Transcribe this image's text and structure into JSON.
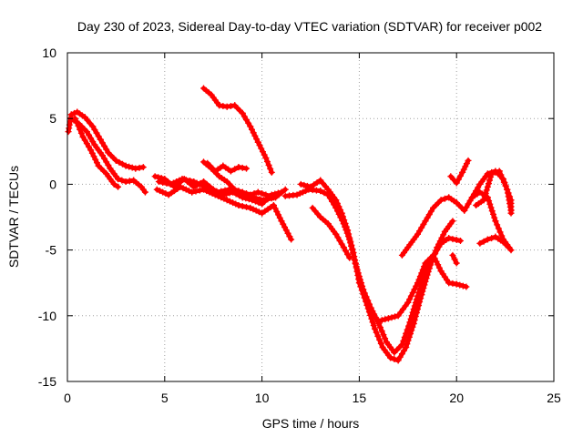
{
  "chart_data": {
    "type": "scatter",
    "title": "Day 230 of 2023, Sidereal Day-to-day VTEC variation (SDTVAR) for receiver p002",
    "xlabel": "GPS time / hours",
    "ylabel": "SDTVAR / TECUs",
    "xlim": [
      0,
      25
    ],
    "ylim": [
      -15,
      10
    ],
    "xticks": [
      0,
      5,
      10,
      15,
      20,
      25
    ],
    "yticks": [
      -15,
      -10,
      -5,
      0,
      5,
      10
    ],
    "grid": true,
    "marker": "+",
    "color": "#ff0000",
    "series": [
      {
        "name": "trace-1",
        "points": [
          [
            0.05,
            4.0
          ],
          [
            0.2,
            5.3
          ],
          [
            0.5,
            5.5
          ],
          [
            0.9,
            5.1
          ],
          [
            1.3,
            4.4
          ],
          [
            1.7,
            3.4
          ],
          [
            2.1,
            2.4
          ],
          [
            2.5,
            1.8
          ],
          [
            3.0,
            1.4
          ],
          [
            3.5,
            1.2
          ],
          [
            3.9,
            1.3
          ]
        ]
      },
      {
        "name": "trace-2",
        "points": [
          [
            0.2,
            5.0
          ],
          [
            0.6,
            4.6
          ],
          [
            1.0,
            4.0
          ],
          [
            1.4,
            3.0
          ],
          [
            1.8,
            2.2
          ],
          [
            2.2,
            1.2
          ],
          [
            2.6,
            0.4
          ],
          [
            3.0,
            0.2
          ],
          [
            3.4,
            0.3
          ],
          [
            3.8,
            -0.2
          ],
          [
            4.0,
            -0.6
          ]
        ]
      },
      {
        "name": "trace-3",
        "points": [
          [
            0.4,
            5.0
          ],
          [
            0.8,
            3.6
          ],
          [
            1.2,
            2.6
          ],
          [
            1.6,
            1.4
          ],
          [
            2.0,
            0.8
          ],
          [
            2.4,
            0.0
          ],
          [
            2.6,
            -0.2
          ]
        ]
      },
      {
        "name": "trace-4",
        "points": [
          [
            4.5,
            0.6
          ],
          [
            5.0,
            0.4
          ],
          [
            5.5,
            -0.2
          ],
          [
            6.0,
            0.4
          ],
          [
            6.5,
            -0.2
          ],
          [
            7.0,
            0.2
          ],
          [
            7.5,
            -0.4
          ],
          [
            8.0,
            -0.8
          ],
          [
            8.5,
            -0.6
          ],
          [
            9.0,
            -1.0
          ],
          [
            9.5,
            -1.2
          ],
          [
            10.0,
            -1.5
          ],
          [
            10.5,
            -0.8
          ],
          [
            11.0,
            -0.6
          ]
        ]
      },
      {
        "name": "trace-5",
        "points": [
          [
            4.6,
            -0.4
          ],
          [
            5.2,
            -0.8
          ],
          [
            5.8,
            -0.2
          ],
          [
            6.4,
            -0.6
          ],
          [
            7.0,
            -0.4
          ],
          [
            7.6,
            -0.8
          ],
          [
            8.2,
            -1.2
          ],
          [
            8.8,
            -1.6
          ],
          [
            9.4,
            -1.8
          ],
          [
            10.0,
            -2.2
          ],
          [
            10.6,
            -1.6
          ],
          [
            11.0,
            -2.8
          ],
          [
            11.5,
            -4.2
          ]
        ]
      },
      {
        "name": "trace-6",
        "points": [
          [
            4.7,
            0.2
          ],
          [
            5.3,
            0.0
          ],
          [
            5.9,
            0.4
          ],
          [
            6.5,
            0.2
          ],
          [
            7.1,
            -0.2
          ],
          [
            7.7,
            -0.6
          ],
          [
            8.3,
            -0.4
          ],
          [
            8.9,
            -0.8
          ],
          [
            9.5,
            -1.0
          ],
          [
            10.1,
            -1.2
          ],
          [
            10.7,
            -1.0
          ],
          [
            11.2,
            -0.4
          ]
        ]
      },
      {
        "name": "trace-7",
        "points": [
          [
            7.0,
            7.3
          ],
          [
            7.4,
            6.8
          ],
          [
            7.8,
            6.0
          ],
          [
            8.2,
            5.9
          ],
          [
            8.6,
            6.0
          ],
          [
            9.0,
            5.4
          ],
          [
            9.4,
            4.4
          ],
          [
            9.8,
            3.2
          ],
          [
            10.2,
            2.0
          ],
          [
            10.5,
            0.9
          ]
        ]
      },
      {
        "name": "trace-8",
        "points": [
          [
            7.0,
            1.7
          ],
          [
            7.4,
            1.2
          ],
          [
            7.8,
            0.6
          ],
          [
            8.2,
            0.2
          ],
          [
            8.6,
            -0.4
          ],
          [
            9.0,
            -0.6
          ],
          [
            9.4,
            -0.8
          ],
          [
            9.8,
            -0.6
          ],
          [
            10.2,
            -0.8
          ],
          [
            10.6,
            -1.0
          ]
        ]
      },
      {
        "name": "trace-9",
        "points": [
          [
            7.2,
            1.6
          ],
          [
            7.6,
            1.0
          ],
          [
            8.0,
            1.4
          ],
          [
            8.4,
            1.0
          ],
          [
            8.8,
            1.3
          ],
          [
            9.2,
            1.2
          ]
        ]
      },
      {
        "name": "trace-10",
        "points": [
          [
            11.2,
            -0.9
          ],
          [
            11.8,
            -0.8
          ],
          [
            12.4,
            -0.4
          ],
          [
            13.0,
            -0.5
          ],
          [
            13.4,
            -0.8
          ],
          [
            13.8,
            -1.8
          ],
          [
            14.2,
            -3.0
          ],
          [
            14.5,
            -4.2
          ],
          [
            14.8,
            -6.0
          ],
          [
            15.2,
            -8.0
          ],
          [
            15.6,
            -9.4
          ],
          [
            16.0,
            -10.6
          ],
          [
            16.4,
            -12.0
          ],
          [
            16.8,
            -12.8
          ],
          [
            17.2,
            -12.2
          ],
          [
            17.6,
            -10.5
          ],
          [
            18.0,
            -8.5
          ],
          [
            18.4,
            -6.8
          ],
          [
            18.8,
            -5.5
          ],
          [
            19.2,
            -4.5
          ],
          [
            19.6,
            -4.1
          ],
          [
            20.2,
            -4.3
          ]
        ]
      },
      {
        "name": "trace-11",
        "points": [
          [
            12.0,
            0.0
          ],
          [
            12.5,
            -0.2
          ],
          [
            13.0,
            0.3
          ],
          [
            13.4,
            -0.4
          ],
          [
            13.8,
            -1.2
          ],
          [
            14.1,
            -2.2
          ],
          [
            14.4,
            -3.5
          ],
          [
            14.7,
            -5.2
          ],
          [
            15.0,
            -7.5
          ],
          [
            15.4,
            -9.2
          ],
          [
            15.8,
            -11.0
          ],
          [
            16.2,
            -12.4
          ],
          [
            16.6,
            -13.2
          ],
          [
            17.0,
            -13.4
          ],
          [
            17.4,
            -12.4
          ],
          [
            17.8,
            -10.6
          ],
          [
            18.2,
            -8.4
          ],
          [
            18.6,
            -6.4
          ],
          [
            19.0,
            -4.8
          ],
          [
            19.4,
            -3.6
          ],
          [
            19.8,
            -2.8
          ]
        ]
      },
      {
        "name": "trace-12",
        "points": [
          [
            12.6,
            -1.8
          ],
          [
            13.0,
            -2.5
          ],
          [
            13.4,
            -3.0
          ],
          [
            13.8,
            -3.8
          ],
          [
            14.2,
            -4.8
          ],
          [
            14.5,
            -5.6
          ]
        ]
      },
      {
        "name": "trace-13",
        "points": [
          [
            16.0,
            -10.4
          ],
          [
            16.5,
            -10.2
          ],
          [
            17.0,
            -10.0
          ],
          [
            17.5,
            -9.0
          ],
          [
            18.0,
            -7.5
          ],
          [
            18.4,
            -6.0
          ],
          [
            18.8,
            -5.4
          ],
          [
            19.2,
            -6.6
          ],
          [
            19.6,
            -7.5
          ],
          [
            20.0,
            -7.6
          ],
          [
            20.5,
            -7.8
          ]
        ]
      },
      {
        "name": "trace-14",
        "points": [
          [
            17.2,
            -5.4
          ],
          [
            17.6,
            -4.6
          ],
          [
            18.0,
            -3.8
          ],
          [
            18.4,
            -2.8
          ],
          [
            18.8,
            -1.8
          ],
          [
            19.2,
            -1.2
          ],
          [
            19.6,
            -1.0
          ],
          [
            20.0,
            -1.4
          ],
          [
            20.4,
            -2.0
          ],
          [
            20.8,
            -1.0
          ],
          [
            21.2,
            0.0
          ],
          [
            21.6,
            0.8
          ],
          [
            22.0,
            1.0
          ],
          [
            22.4,
            0.4
          ],
          [
            22.8,
            -1.2
          ],
          [
            22.8,
            -2.2
          ]
        ]
      },
      {
        "name": "trace-15",
        "points": [
          [
            19.7,
            0.6
          ],
          [
            20.0,
            0.1
          ],
          [
            20.3,
            0.9
          ],
          [
            20.6,
            1.8
          ]
        ]
      },
      {
        "name": "trace-16",
        "points": [
          [
            20.8,
            -1.0
          ],
          [
            21.2,
            -0.6
          ],
          [
            21.6,
            -1.0
          ],
          [
            22.0,
            -2.8
          ],
          [
            22.4,
            -4.2
          ],
          [
            22.8,
            -5.0
          ]
        ]
      },
      {
        "name": "trace-17",
        "points": [
          [
            21.0,
            -1.6
          ],
          [
            21.4,
            -1.2
          ],
          [
            21.8,
            0.8
          ],
          [
            22.2,
            1.0
          ],
          [
            22.6,
            -0.4
          ],
          [
            22.8,
            -2.0
          ]
        ]
      },
      {
        "name": "trace-18",
        "points": [
          [
            19.8,
            -5.4
          ],
          [
            20.0,
            -6.0
          ]
        ]
      },
      {
        "name": "trace-19",
        "points": [
          [
            21.2,
            -4.5
          ],
          [
            21.6,
            -4.2
          ],
          [
            22.0,
            -4.0
          ],
          [
            22.4,
            -4.4
          ],
          [
            22.8,
            -5.0
          ]
        ]
      }
    ]
  }
}
